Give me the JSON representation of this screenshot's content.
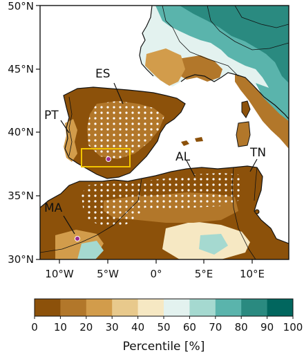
{
  "map": {
    "lat_ticks": [
      "50°N",
      "45°N",
      "40°N",
      "35°N",
      "30°N"
    ],
    "lon_ticks": [
      "10°W",
      "5°W",
      "0°",
      "5°E",
      "10°E"
    ],
    "regions": [
      {
        "id": "es",
        "label": "ES"
      },
      {
        "id": "pt",
        "label": "PT"
      },
      {
        "id": "al",
        "label": "AL"
      },
      {
        "id": "tn",
        "label": "TN"
      },
      {
        "id": "ma",
        "label": "MA"
      }
    ],
    "highlight_box_color": "#f2c400",
    "station_marker_color": "#9b2d8f"
  },
  "colorbar": {
    "tick_labels": [
      "0",
      "10",
      "20",
      "30",
      "40",
      "50",
      "60",
      "70",
      "80",
      "90",
      "100"
    ],
    "colors": [
      "#8c510a",
      "#b2772a",
      "#d29c4b",
      "#e8c98c",
      "#f6e8c3",
      "#e3f2ef",
      "#a5d9d0",
      "#5ab4ac",
      "#2a8a80",
      "#01665e"
    ],
    "title": "Percentile [%]"
  }
}
